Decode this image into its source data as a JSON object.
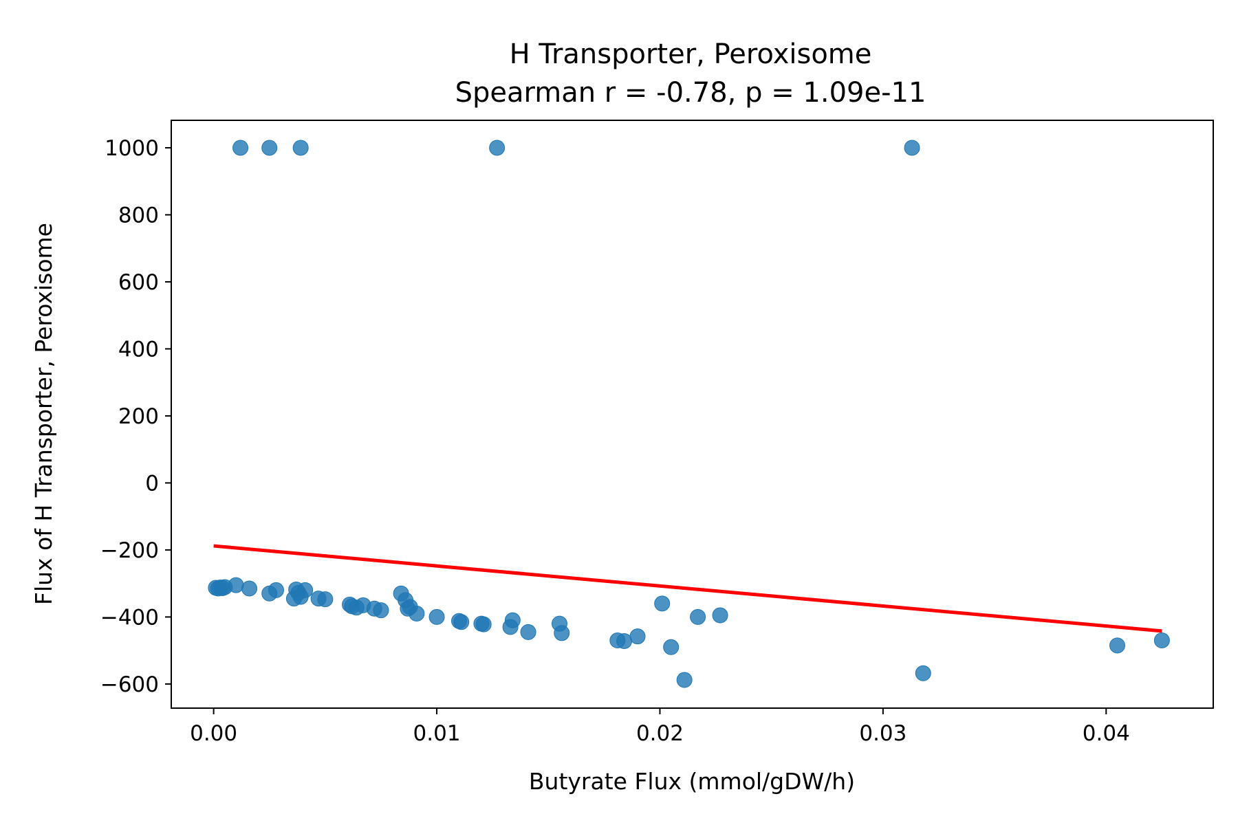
{
  "chart_data": {
    "type": "scatter",
    "title": "H Transporter, Peroxisome",
    "subtitle": "Spearman r = -0.78, p = 1.09e-11",
    "xlabel": "Butyrate Flux (mmol/gDW/h)",
    "ylabel": "Flux of H Transporter, Peroxisome",
    "xlim": [
      -0.0019,
      0.0448
    ],
    "ylim": [
      -672,
      1082
    ],
    "xticks": [
      0.0,
      0.01,
      0.02,
      0.03,
      0.04
    ],
    "xtick_labels": [
      "0.00",
      "0.01",
      "0.02",
      "0.03",
      "0.04"
    ],
    "yticks": [
      1000,
      800,
      600,
      400,
      200,
      0,
      -200,
      -400,
      -600
    ],
    "ytick_labels": [
      "1000",
      "800",
      "600",
      "400",
      "200",
      "0",
      "−200",
      "−400",
      "−600"
    ],
    "grid": false,
    "legend": "none",
    "colors": {
      "points": "#1f77b4",
      "regression_line": "#ff0000"
    },
    "series": [
      {
        "kind": "points",
        "x": [
          0.0012,
          0.0025,
          0.0039,
          0.0127,
          0.0313,
          0.0001,
          0.0002,
          0.0003,
          0.0004,
          0.0005,
          0.001,
          0.0016,
          0.0025,
          0.0028,
          0.0036,
          0.0037,
          0.0038,
          0.0039,
          0.0041,
          0.0047,
          0.005,
          0.0061,
          0.0062,
          0.0064,
          0.0067,
          0.0072,
          0.0075,
          0.0084,
          0.0086,
          0.0087,
          0.0088,
          0.0091,
          0.01,
          0.011,
          0.0111,
          0.012,
          0.0121,
          0.0133,
          0.0134,
          0.0141,
          0.0155,
          0.0156,
          0.0181,
          0.0184,
          0.019,
          0.0201,
          0.0205,
          0.0211,
          0.0217,
          0.0227,
          0.0318,
          0.0405,
          0.0425
        ],
        "y": [
          1000,
          1000,
          1000,
          1000,
          1000,
          -313,
          -315,
          -312,
          -314,
          -311,
          -305,
          -315,
          -330,
          -320,
          -345,
          -318,
          -328,
          -340,
          -320,
          -345,
          -347,
          -363,
          -368,
          -372,
          -365,
          -375,
          -380,
          -330,
          -350,
          -375,
          -370,
          -390,
          -400,
          -412,
          -415,
          -420,
          -422,
          -430,
          -410,
          -445,
          -420,
          -448,
          -470,
          -472,
          -458,
          -360,
          -490,
          -588,
          -400,
          -395,
          -568,
          -485,
          -470
        ]
      },
      {
        "kind": "regression",
        "x": [
          0.0,
          0.0425
        ],
        "y": [
          -188,
          -442
        ]
      }
    ]
  }
}
